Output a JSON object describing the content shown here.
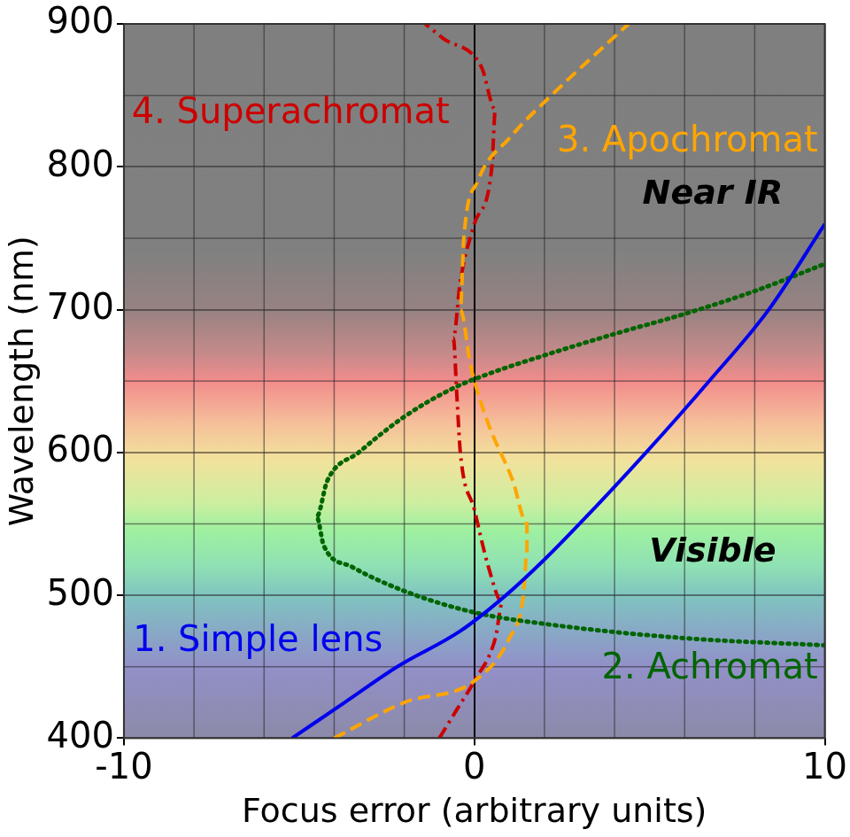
{
  "chart_data": {
    "type": "line",
    "xlabel": "Focus error (arbitrary units)",
    "ylabel": "Wavelength (nm)",
    "xlim": [
      -10,
      10
    ],
    "xticks": [
      -10,
      0,
      10
    ],
    "ylim": [
      400,
      900
    ],
    "yticks": [
      400,
      500,
      600,
      700,
      800,
      900
    ],
    "grid": true,
    "annotations": [
      "Near IR",
      "Visible"
    ],
    "series": [
      {
        "name": "1. Simple lens",
        "color": "#0000ee",
        "line_style": "solid",
        "x": [
          -5.2,
          -3.7,
          -2.2,
          -0.4,
          0.9,
          2.0,
          3.0,
          4.9,
          6.7,
          8.4,
          10
        ],
        "y": [
          400,
          425,
          450,
          475,
          500,
          525,
          550,
          600,
          650,
          700,
          760
        ]
      },
      {
        "name": "2. Achromat",
        "color": "#006400",
        "line_style": "dotted",
        "x": [
          10,
          6,
          2,
          0,
          -2,
          -3.5,
          -4.3,
          -4.5,
          -4.2,
          -3.3,
          -2,
          -0.6,
          0.4,
          2,
          4,
          6,
          8,
          10
        ],
        "y": [
          465,
          470,
          480,
          488,
          503,
          520,
          535,
          555,
          580,
          600,
          625,
          645,
          655,
          668,
          683,
          697,
          713,
          732
        ]
      },
      {
        "name": "3. Apochromat",
        "color": "#ffa500",
        "line_style": "dashed",
        "x": [
          -4,
          -2,
          0,
          1,
          1.4,
          1.5,
          1.5,
          1.1,
          0.4,
          -0.1,
          -0.4,
          -0.3,
          0.1,
          1,
          2.2,
          4.4
        ],
        "y": [
          400,
          425,
          440,
          470,
          500,
          530,
          550,
          580,
          620,
          660,
          700,
          750,
          790,
          820,
          850,
          900
        ]
      },
      {
        "name": "4. Superachromat",
        "color": "#cc0000",
        "line_style": "dashdot",
        "x": [
          -1,
          -0.5,
          0,
          0.6,
          0.8,
          0.4,
          0,
          -0.4,
          -0.5,
          -0.6,
          -0.4,
          0,
          0.5,
          0.6,
          0.2,
          -0.9,
          -1.4
        ],
        "y": [
          400,
          420,
          440,
          470,
          495,
          520,
          560,
          600,
          640,
          680,
          720,
          760,
          800,
          840,
          870,
          890,
          900
        ]
      }
    ]
  }
}
